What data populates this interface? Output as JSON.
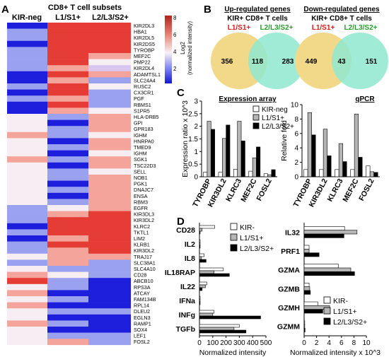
{
  "panels": {
    "A": {
      "letter": "A",
      "title": "CD8+ T cell subsets",
      "columns": [
        "KIR-neg",
        "L1/S1+",
        "L2/L3/S2+"
      ],
      "colorbar": {
        "ticks": [
          "8",
          "6",
          "4",
          "2"
        ],
        "label_line1": "Log2",
        "label_line2": "(normalized intensity)"
      },
      "genes": [
        "KIR2DL3",
        "HBA1",
        "KIR2DL5",
        "KIR2DS5",
        "TYROBP",
        "MEF2C",
        "PMP22",
        "KIR2DL4",
        "ADAMTSL1",
        "SLC24A4",
        "RUSC2",
        "CX3CR1",
        "PGF",
        "RBMS1",
        "S1PR5",
        "HLA-DRB5",
        "GPI",
        "GPR183",
        "IGHM",
        "HNRPA0",
        "TMED9",
        "IGHM",
        "SGK1",
        "TSC22D3",
        "SELL",
        "NOB1",
        "PGK1",
        "DNAJC7",
        "ENSA",
        "RBM3",
        "EGFR",
        "KIR3DL3",
        "KIR3DL2",
        "KLRC2",
        "TKTL1",
        "LIM2",
        "KLRB1",
        "KIR3DL2",
        "TRAJ17",
        "SLC38A1",
        "SLC4A10",
        "CD28",
        "ABCB10",
        "RPS3A",
        "ATCAY",
        "FAM134B",
        "RPL14",
        "DLEU2",
        "EGLN3",
        "RAMP1",
        "SOX4",
        "LEF1",
        "FOSL2"
      ]
    },
    "B": {
      "letter": "B",
      "venns": [
        {
          "title": "Up-regulated genes",
          "subtitle": "KIR+ CD8+ T cells",
          "left_label": "L1/S1+",
          "right_label": "L2/L3/S2+",
          "left_only": "356",
          "overlap": "118",
          "right_only": "283"
        },
        {
          "title": "Down-regulated genes",
          "subtitle": "KIR+ CD8+ T cells",
          "left_label": "L1/S1+",
          "right_label": "L2/L3/S2+",
          "left_only": "449",
          "overlap": "43",
          "right_only": "151"
        }
      ]
    },
    "C": {
      "letter": "C"
    },
    "D": {
      "letter": "D"
    }
  },
  "colors": {
    "red_label": "#d41c1c",
    "green_label": "#2a9a2a",
    "venn_left": "#f2d98a",
    "venn_right": "#8fe7cf",
    "bar_white": "#ffffff",
    "bar_gray": "#b5b5b5",
    "bar_black": "#000000"
  },
  "chart_data": [
    {
      "type": "bar",
      "title": "Expression array",
      "ylabel": "Expression ratio x 10^3",
      "ylim": [
        0,
        3
      ],
      "yticks": [
        "0",
        "0.5",
        "1",
        "1.5",
        "2",
        "2.5",
        "3"
      ],
      "categories": [
        "TYROBP",
        "KIR3DL2",
        "KLRC3",
        "MEF2C",
        "FOSL2"
      ],
      "legend": [
        "KIR-neg",
        "L1/S1+",
        "L2/L3/S2+"
      ],
      "legend_position": "top-right",
      "series": [
        {
          "name": "KIR-neg",
          "values": [
            0.18,
            0.18,
            0.3,
            0.22,
            0.12
          ]
        },
        {
          "name": "L1/S1+",
          "values": [
            2.2,
            1.52,
            2.2,
            0.75,
            0.08
          ]
        },
        {
          "name": "L2/L3/S2+",
          "values": [
            1.88,
            2.05,
            1.42,
            1.18,
            0.28
          ]
        }
      ]
    },
    {
      "type": "bar",
      "title": "qPCR",
      "ylabel": "Relative fold",
      "ylim": [
        0,
        10
      ],
      "yticks": [
        "0",
        "2",
        "4",
        "6",
        "8",
        "10"
      ],
      "categories": [
        "TYROBP",
        "KIR3DL2",
        "KLRC3",
        "MEF2C",
        "FOSL2"
      ],
      "series": [
        {
          "name": "KIR-neg",
          "values": [
            1.0,
            1.0,
            1.0,
            1.0,
            1.5
          ]
        },
        {
          "name": "L1/S1+",
          "values": [
            8.9,
            6.6,
            4.6,
            8.7,
            0.7
          ]
        },
        {
          "name": "L2/L3/S2+",
          "values": [
            5.8,
            2.9,
            2.1,
            2.7,
            0.6
          ]
        }
      ]
    },
    {
      "type": "bar",
      "orientation": "horizontal",
      "xlabel": "Normalized intensity",
      "xlim": [
        0,
        500
      ],
      "xticks": [
        "0",
        "100",
        "200",
        "300",
        "400",
        "500"
      ],
      "categories": [
        "CD28",
        "IL2",
        "IL8",
        "IL18RAP",
        "IL22",
        "IFNa",
        "INFg",
        "TGFb"
      ],
      "legend": [
        "KIR-",
        "L1/S1+",
        "L2/L3/S2+"
      ],
      "legend_position": "top-right",
      "series": [
        {
          "name": "KIR-",
          "values": [
            115,
            5,
            35,
            180,
            55,
            5,
            110,
            300
          ]
        },
        {
          "name": "L1/S1+",
          "values": [
            20,
            5,
            15,
            110,
            45,
            5,
            100,
            260
          ]
        },
        {
          "name": "L2/L3/S2+",
          "values": [
            5,
            5,
            50,
            225,
            20,
            5,
            460,
            350
          ]
        }
      ]
    },
    {
      "type": "bar",
      "orientation": "horizontal",
      "xlabel": "Normalized intensity x 10^3",
      "xlim": [
        0,
        10
      ],
      "xticks": [
        "0",
        "2",
        "4",
        "6",
        "8",
        "10"
      ],
      "categories": [
        "IL32",
        "PRF1",
        "GZMA",
        "GZMB",
        "GZMH",
        "GZMM"
      ],
      "legend": [
        "KIR-",
        "L1/S1+",
        "L2/L3/S2+"
      ],
      "legend_position": "bottom-right",
      "series": [
        {
          "name": "KIR-",
          "values": [
            6.5,
            0.8,
            5.5,
            0.8,
            2.2,
            0.1
          ]
        },
        {
          "name": "L1/S1+",
          "values": [
            8.5,
            0.8,
            7.5,
            0.9,
            4.1,
            0.1
          ]
        },
        {
          "name": "L2/L3/S2+",
          "values": [
            6.4,
            2.4,
            8.1,
            1.0,
            3.0,
            0.15
          ]
        }
      ]
    }
  ]
}
